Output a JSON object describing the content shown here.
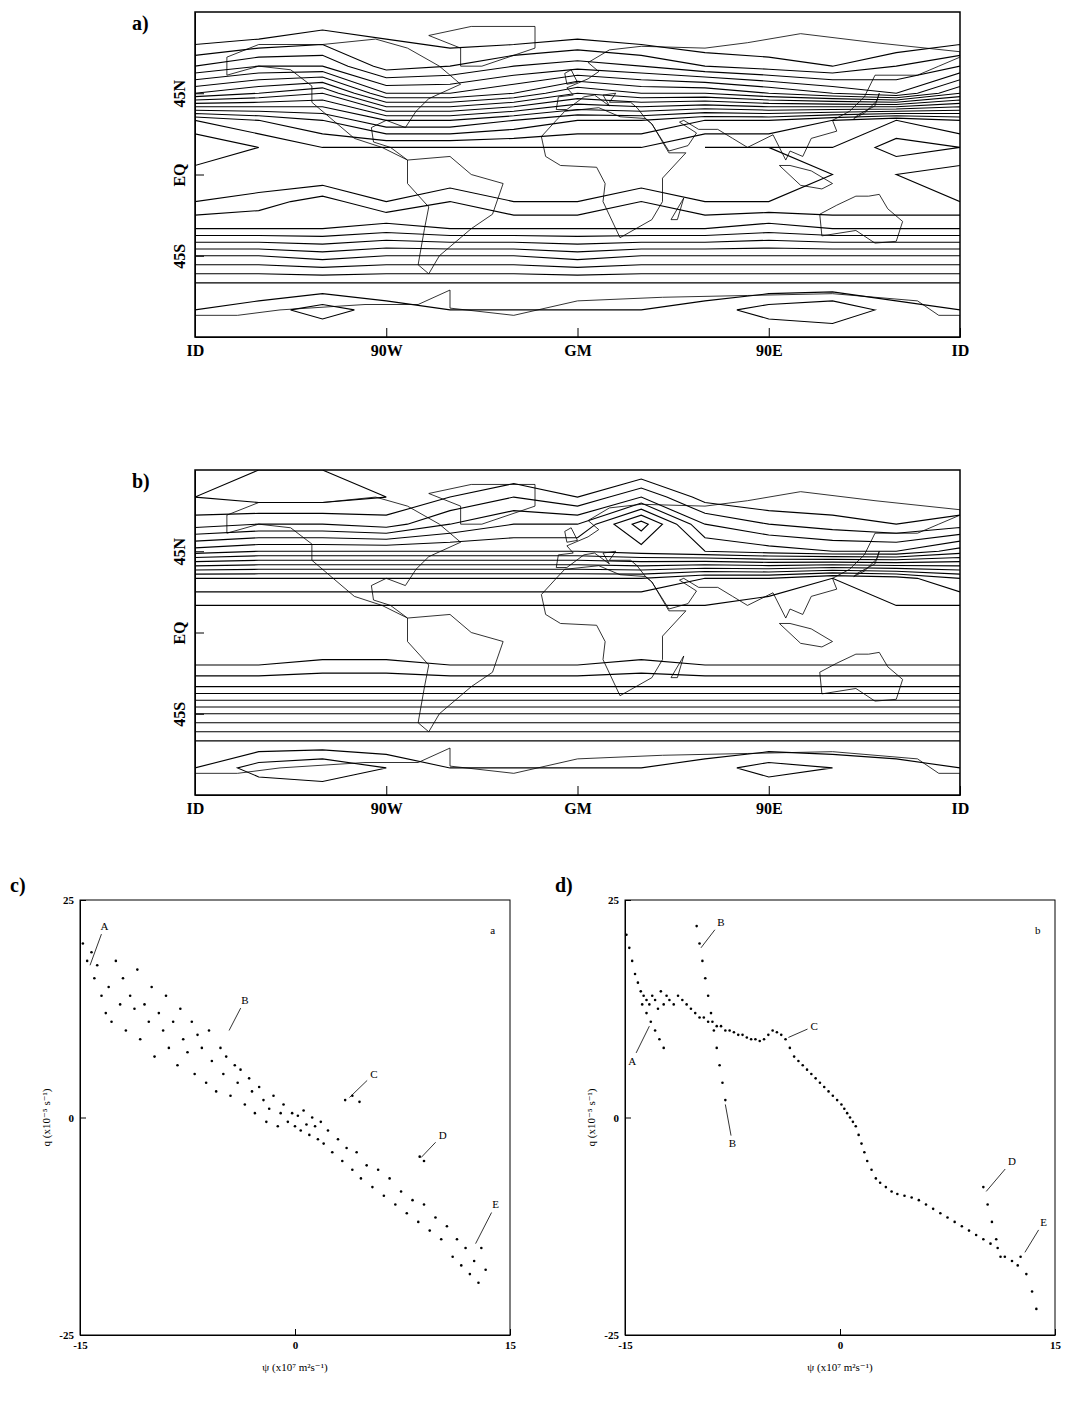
{
  "chart_data": [
    {
      "type": "contour",
      "panel_label": "a)",
      "color": "#000000",
      "xlim": [
        -180,
        180
      ],
      "xticks": [
        {
          "value": -180,
          "label": "ID"
        },
        {
          "value": -90,
          "label": "90W"
        },
        {
          "value": 0,
          "label": "GM"
        },
        {
          "value": 90,
          "label": "90E"
        },
        {
          "value": 180,
          "label": "ID"
        }
      ],
      "ylim": [
        -90,
        90
      ],
      "yticks": [
        {
          "value": 45,
          "label": "45N"
        },
        {
          "value": 0,
          "label": "EQ"
        },
        {
          "value": -45,
          "label": "45S"
        }
      ],
      "x": [
        -180,
        -150,
        -120,
        -90,
        -60,
        -30,
        0,
        30,
        60,
        90,
        120,
        150,
        180
      ],
      "y": [
        90,
        75,
        60,
        45,
        30,
        15,
        0,
        -15,
        -30,
        -45,
        -60,
        -75,
        -90
      ],
      "values": [
        [
          -13,
          -13,
          -13,
          -13,
          -13,
          -13,
          -13,
          -13,
          -13,
          -13,
          -13,
          -13,
          -13
        ],
        [
          -12.5,
          -12,
          -11.5,
          -12,
          -12.5,
          -12.5,
          -12,
          -12.5,
          -13,
          -13,
          -13,
          -13,
          -12.5
        ],
        [
          -10,
          -9,
          -9,
          -11.5,
          -11,
          -10,
          -9.5,
          -10,
          -11,
          -11.5,
          -12,
          -11,
          -10
        ],
        [
          -6,
          -5,
          -4,
          -8,
          -8,
          -7,
          -5,
          -6,
          -6,
          -7,
          -8,
          -9,
          -6
        ],
        [
          2,
          1,
          0,
          -2,
          -2,
          -1,
          0,
          0,
          1,
          1,
          2,
          3,
          2
        ],
        [
          4,
          3,
          2,
          2,
          2,
          2,
          2,
          2,
          3,
          3,
          3,
          4.5,
          4
        ],
        [
          2.5,
          2,
          2,
          2,
          2,
          2,
          2,
          2,
          2,
          2.5,
          3,
          3,
          2.5
        ],
        [
          3,
          3.5,
          4.5,
          3,
          4,
          3,
          3,
          4,
          3,
          3,
          3,
          3,
          3
        ],
        [
          5,
          5,
          5,
          5.5,
          5,
          5,
          5,
          5,
          5,
          5.5,
          5,
          5,
          5
        ],
        [
          9,
          9,
          8.5,
          9,
          9,
          9,
          8.5,
          9,
          9,
          9,
          9,
          9,
          9
        ],
        [
          12,
          12,
          12,
          12,
          12,
          12,
          12,
          12,
          12,
          12,
          12,
          12,
          12
        ],
        [
          13,
          13.5,
          14.5,
          13.5,
          13,
          13,
          13,
          13,
          13.5,
          14.5,
          15,
          13.5,
          13
        ],
        [
          13,
          13,
          13,
          13,
          13,
          13,
          13,
          13,
          13,
          13,
          13,
          13,
          13
        ]
      ],
      "contour_levels": [
        -13,
        -12,
        -11,
        -10,
        -9,
        -8,
        -7,
        -6,
        -5,
        -4,
        -3,
        -2,
        -1,
        0,
        1,
        2,
        3,
        4,
        5,
        6,
        7,
        8,
        9,
        10,
        11,
        12,
        13,
        14,
        15
      ]
    },
    {
      "type": "contour",
      "panel_label": "b)",
      "color": "#000000",
      "xlim": [
        -180,
        180
      ],
      "xticks": [
        {
          "value": -180,
          "label": "ID"
        },
        {
          "value": -90,
          "label": "90W"
        },
        {
          "value": 0,
          "label": "GM"
        },
        {
          "value": 90,
          "label": "90E"
        },
        {
          "value": 180,
          "label": "ID"
        }
      ],
      "ylim": [
        -90,
        90
      ],
      "yticks": [
        {
          "value": 45,
          "label": "45N"
        },
        {
          "value": 0,
          "label": "EQ"
        },
        {
          "value": -45,
          "label": "45S"
        }
      ],
      "x": [
        -180,
        -150,
        -120,
        -90,
        -60,
        -30,
        0,
        30,
        60,
        90,
        120,
        150,
        180
      ],
      "y": [
        90,
        75,
        60,
        45,
        30,
        15,
        0,
        -15,
        -30,
        -45,
        -60,
        -75,
        -90
      ],
      "values": [
        [
          -12,
          -12,
          -12,
          -12,
          -12,
          -12,
          -12,
          -12,
          -12,
          -12,
          -12,
          -12,
          -12
        ],
        [
          -12,
          -12.5,
          -12.5,
          -12,
          -11,
          -10,
          -11,
          -9,
          -11.5,
          -12,
          -12,
          -12,
          -12
        ],
        [
          -10.5,
          -10,
          -10,
          -10.5,
          -9,
          -8,
          -8,
          -4.5,
          -9,
          -10,
          -10.5,
          -11,
          -10.5
        ],
        [
          -6.5,
          -6,
          -6,
          -6,
          -6,
          -6,
          -6,
          -6.5,
          -7,
          -7.5,
          -8,
          -8,
          -6.5
        ],
        [
          0,
          0,
          0,
          0,
          0,
          0,
          0,
          0,
          1,
          1,
          2,
          1.5,
          0
        ],
        [
          2,
          2,
          2,
          2,
          2,
          2,
          2,
          2,
          2,
          2.5,
          2.5,
          2,
          2
        ],
        [
          2,
          2.5,
          2,
          2,
          2,
          2,
          2,
          2,
          2,
          2,
          2,
          2,
          2
        ],
        [
          2.5,
          2.5,
          3,
          3,
          2.5,
          2.5,
          2.5,
          3,
          2.5,
          2.5,
          2.5,
          2.5,
          2.5
        ],
        [
          5,
          5,
          5,
          5,
          5,
          5,
          5,
          5,
          5,
          5,
          5,
          5,
          5
        ],
        [
          9,
          9,
          9,
          9,
          9,
          9,
          9,
          9,
          9,
          9,
          9,
          9,
          9
        ],
        [
          12,
          12,
          12,
          12,
          12,
          12,
          12,
          12,
          12,
          12,
          12,
          12,
          12
        ],
        [
          13,
          14.5,
          15,
          14,
          13,
          13,
          13,
          13,
          13.5,
          14.5,
          14,
          13.5,
          13
        ],
        [
          13,
          13,
          13,
          13,
          13,
          13,
          13,
          13,
          13,
          13,
          13,
          13,
          13
        ]
      ],
      "contour_levels": [
        -13,
        -12,
        -11,
        -10,
        -9,
        -8,
        -7,
        -6,
        -5,
        -4,
        -3,
        -2,
        -1,
        0,
        1,
        2,
        3,
        4,
        5,
        6,
        7,
        8,
        9,
        10,
        11,
        12,
        13,
        14,
        15
      ]
    },
    {
      "type": "scatter",
      "panel_label": "c)",
      "color": "#000000",
      "marker": "dot",
      "x_label": "ψ (x10⁷ m²s⁻¹)",
      "y_label": "q (x10⁻⁵ s⁻¹)",
      "xlim": [
        -15,
        15
      ],
      "xticks": [
        -15,
        0,
        15
      ],
      "ylim": [
        -25,
        25
      ],
      "yticks": [
        -25,
        0,
        25
      ],
      "x": [
        -14.8,
        -14.5,
        -14.2,
        -14,
        -13.8,
        -13.5,
        -13.2,
        -13,
        -12.8,
        -12.5,
        -12.2,
        -12,
        -11.8,
        -11.5,
        -11.2,
        -11,
        -10.8,
        -10.5,
        -10.2,
        -10,
        -9.8,
        -9.5,
        -9.2,
        -9,
        -8.8,
        -8.5,
        -8.2,
        -8,
        -7.8,
        -7.5,
        -7.2,
        -7,
        -6.8,
        -6.5,
        -6.2,
        -6,
        -5.8,
        -5.5,
        -5.2,
        -5,
        -4.8,
        -4.5,
        -4.2,
        -4,
        -3.8,
        -3.5,
        -3.2,
        -3,
        -2.8,
        -2.5,
        -2.2,
        -2,
        -1.8,
        -1.5,
        -1.2,
        -1,
        -0.8,
        -0.5,
        -0.2,
        0,
        0.2,
        0.4,
        0.6,
        0.8,
        1,
        1.2,
        1.4,
        1.6,
        1.8,
        2,
        2.3,
        2.6,
        3,
        3.3,
        3.6,
        4,
        4.3,
        4.6,
        5,
        5.4,
        5.8,
        6.2,
        6.6,
        7,
        7.4,
        7.8,
        8.2,
        8.6,
        9,
        9.4,
        9.8,
        10.2,
        10.6,
        11,
        11.3,
        11.6,
        11.9,
        12.2,
        12.5,
        12.8,
        13,
        13.3,
        3.5,
        4,
        4.5,
        8.7,
        9
      ],
      "values": [
        20,
        18,
        19,
        16,
        17.5,
        14,
        12,
        15,
        11,
        18,
        13,
        16,
        10,
        14,
        12.5,
        17,
        9,
        13,
        11,
        15,
        7,
        12,
        10,
        14,
        8,
        11,
        6,
        12.5,
        9,
        7.5,
        11,
        5,
        9.5,
        8,
        4,
        10,
        6.5,
        3,
        8,
        5,
        7,
        2.5,
        6,
        4,
        5.5,
        1.5,
        4.5,
        3,
        0.5,
        3.5,
        2,
        -0.5,
        1,
        2.5,
        -1,
        0.5,
        1.5,
        -0.5,
        0.5,
        -1,
        0.2,
        -1.5,
        0.8,
        -0.8,
        -2,
        0,
        -1,
        -2.5,
        -0.5,
        -3,
        -1.5,
        -4,
        -2.5,
        -5,
        -3.5,
        -6,
        -4,
        -7,
        -5.5,
        -8,
        -6,
        -9,
        -7,
        -10,
        -8.5,
        -11,
        -9.5,
        -12,
        -10,
        -13,
        -11.5,
        -14,
        -12.5,
        -16,
        -14,
        -17,
        -15,
        -18,
        -16.5,
        -19,
        -15,
        -17.5,
        2,
        2.5,
        1.8,
        -4.5,
        -5
      ],
      "annotations": [
        {
          "text": "A",
          "x": -13.3,
          "y": 22,
          "target_x": -14.3,
          "target_y": 17.5
        },
        {
          "text": "B",
          "x": -3.5,
          "y": 13.5,
          "target_x": -4.6,
          "target_y": 10
        },
        {
          "text": "C",
          "x": 5.5,
          "y": 5,
          "target_x": 3.8,
          "target_y": 2.3
        },
        {
          "text": "D",
          "x": 10.3,
          "y": -2,
          "target_x": 8.8,
          "target_y": -4.6
        },
        {
          "text": "E",
          "x": 14,
          "y": -10,
          "target_x": 12.6,
          "target_y": -14.5
        },
        {
          "text": "a",
          "x": 13.8,
          "y": 21.5
        }
      ]
    },
    {
      "type": "scatter",
      "panel_label": "d)",
      "color": "#000000",
      "marker": "dot",
      "x_label": "ψ (x10⁷ m²s⁻¹)",
      "y_label": "q (x10⁻⁵ s⁻¹)",
      "xlim": [
        -15,
        15
      ],
      "xticks": [
        -15,
        0,
        15
      ],
      "ylim": [
        -25,
        25
      ],
      "yticks": [
        -25,
        0,
        25
      ],
      "x": [
        -14.9,
        -14.7,
        -14.5,
        -14.3,
        -14.1,
        -13.9,
        -13.7,
        -13.5,
        -13.3,
        -13.1,
        -12.9,
        -12.7,
        -12.5,
        -12.3,
        -12.1,
        -11.9,
        -11.6,
        -11.3,
        -11,
        -10.7,
        -10.4,
        -10.1,
        -9.8,
        -9.5,
        -9.2,
        -8.9,
        -8.6,
        -8.3,
        -8,
        -7.7,
        -7.4,
        -7.1,
        -6.8,
        -6.5,
        -6.2,
        -5.9,
        -5.6,
        -5.3,
        -5,
        -4.7,
        -4.4,
        -4.1,
        -3.8,
        -3.5,
        -3.2,
        -2.9,
        -2.6,
        -2.3,
        -2,
        -1.7,
        -1.4,
        -1.1,
        -0.8,
        -0.5,
        -0.2,
        0.1,
        0.3,
        0.5,
        0.7,
        0.9,
        1.1,
        1.3,
        1.5,
        1.7,
        1.9,
        2.2,
        2.5,
        2.8,
        3.2,
        3.6,
        4,
        4.5,
        5,
        5.5,
        6,
        6.5,
        7,
        7.5,
        8,
        8.5,
        9,
        9.5,
        10,
        10.5,
        11,
        11.5,
        12,
        12.4,
        -10,
        -9.8,
        -9.6,
        -9.4,
        -9.2,
        -9,
        -8.8,
        -8.6,
        -8.4,
        -8.2,
        -8,
        -13.8,
        -13.5,
        -13.2,
        -12.9,
        -12.6,
        -12.3,
        10,
        10.3,
        10.6,
        10.9,
        11.2,
        12.6,
        13,
        13.4,
        13.7
      ],
      "values": [
        21,
        19.5,
        18,
        16.5,
        15.5,
        14.5,
        14,
        13.5,
        13,
        14,
        13.5,
        12.5,
        14.5,
        13,
        14,
        13.5,
        13,
        14,
        13.5,
        13,
        12.5,
        12,
        11.5,
        11.5,
        11,
        11,
        10.5,
        10.5,
        10,
        10,
        9.8,
        9.5,
        9.5,
        9.2,
        9,
        9,
        8.8,
        9,
        9.5,
        10,
        9.8,
        9.5,
        9,
        8,
        7,
        6.5,
        6,
        5.5,
        5,
        4.5,
        4,
        3.5,
        3,
        2.5,
        2,
        1.5,
        1,
        0.5,
        0,
        -0.5,
        -1,
        -2,
        -3,
        -4,
        -5,
        -6,
        -7,
        -7.5,
        -8,
        -8.5,
        -8.8,
        -9,
        -9.2,
        -9.5,
        -10,
        -10.5,
        -11,
        -11.5,
        -12,
        -12.5,
        -13,
        -13.5,
        -14,
        -14.5,
        -15,
        -16,
        -16.5,
        -17,
        22,
        20,
        18,
        16,
        14,
        12,
        10,
        8,
        6,
        4,
        2,
        13,
        12,
        11,
        10,
        9,
        8,
        -8,
        -10,
        -12,
        -14,
        -16,
        -16,
        -18,
        -20,
        -22
      ],
      "annotations": [
        {
          "text": "A",
          "x": -14.5,
          "y": 6.5,
          "target_x": -13.3,
          "target_y": 10.5
        },
        {
          "text": "B",
          "x": -8.3,
          "y": 22.5,
          "target_x": -9.7,
          "target_y": 19.5
        },
        {
          "text": "B",
          "x": -7.5,
          "y": -3,
          "target_x": -8,
          "target_y": 1.5
        },
        {
          "text": "C",
          "x": -1.8,
          "y": 10.5,
          "target_x": -3.6,
          "target_y": 9.2
        },
        {
          "text": "D",
          "x": 12,
          "y": -5,
          "target_x": 10.2,
          "target_y": -8.5
        },
        {
          "text": "E",
          "x": 14.2,
          "y": -12,
          "target_x": 12.9,
          "target_y": -15.5
        },
        {
          "text": "b",
          "x": 13.8,
          "y": 21.5
        }
      ]
    }
  ]
}
